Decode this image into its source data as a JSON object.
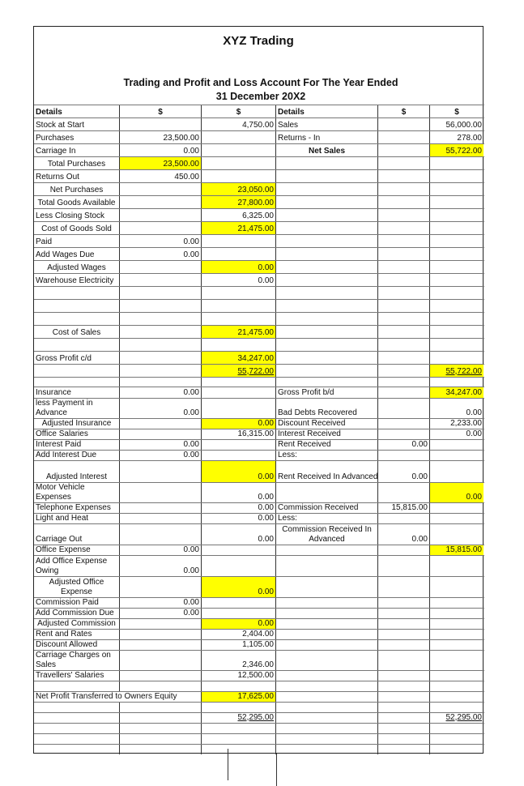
{
  "title": "XYZ Trading",
  "subtitle_line1": "Trading and Profit and Loss Account For The Year Ended",
  "subtitle_line2": "31 December 20X2",
  "highlight_color": "#ffff00",
  "rows": [
    {
      "c": [
        "Details",
        "$",
        "$",
        "Details",
        "$",
        "$"
      ],
      "bold": true
    },
    {
      "c": [
        "Stock at Start",
        "",
        "4,750.00",
        "Sales",
        "",
        "56,000.00"
      ]
    },
    {
      "c": [
        "Purchases",
        "23,500.00",
        "",
        "Returns - In",
        "",
        "278.00"
      ]
    },
    {
      "c": [
        "Carriage In",
        "0.00",
        "",
        "Net Sales",
        "",
        "55,722.00"
      ],
      "hl": [
        5
      ]
    },
    {
      "c": [
        "Total Purchases",
        "23,500.00",
        "",
        "",
        "",
        ""
      ],
      "hl": [
        1
      ]
    },
    {
      "c": [
        "Returns Out",
        "450.00",
        "",
        "",
        "",
        ""
      ]
    },
    {
      "c": [
        "Net Purchases",
        "",
        "23,050.00",
        "",
        "",
        ""
      ],
      "hl": [
        2
      ]
    },
    {
      "c": [
        "Total Goods Available",
        "",
        "27,800.00",
        "",
        "",
        ""
      ],
      "hl": [
        2
      ]
    },
    {
      "c": [
        "Less Closing Stock",
        "",
        "6,325.00",
        "",
        "",
        ""
      ]
    },
    {
      "c": [
        "Cost of Goods Sold",
        "",
        "21,475.00",
        "",
        "",
        ""
      ],
      "hl": [
        2
      ]
    },
    {
      "c": [
        "Paid",
        "0.00",
        "",
        "",
        "",
        ""
      ]
    },
    {
      "c": [
        "Add Wages Due",
        "0.00",
        "",
        "",
        "",
        ""
      ]
    },
    {
      "c": [
        "Adjusted Wages",
        "",
        "0.00",
        "",
        "",
        ""
      ],
      "hl": [
        2
      ]
    },
    {
      "c": [
        "Warehouse Electricity",
        "",
        "0.00",
        "",
        "",
        ""
      ]
    },
    {
      "c": [
        "",
        "",
        "",
        "",
        "",
        ""
      ]
    },
    {
      "c": [
        "",
        "",
        "",
        "",
        "",
        ""
      ]
    },
    {
      "c": [
        "",
        "",
        "",
        "",
        "",
        ""
      ]
    },
    {
      "c": [
        "Cost of Sales",
        "",
        "21,475.00",
        "",
        "",
        ""
      ],
      "hl": [
        2
      ]
    },
    {
      "c": [
        "",
        "",
        "",
        "",
        "",
        ""
      ]
    },
    {
      "c": [
        "Gross Profit c/d",
        "",
        "34,247.00",
        "",
        "",
        ""
      ],
      "hl": [
        2
      ]
    },
    {
      "c": [
        "",
        "",
        "55,722.00",
        "",
        "",
        "55,722.00"
      ],
      "hl": [
        2,
        5
      ],
      "ul": [
        2,
        5
      ]
    },
    {
      "c": [
        "",
        "",
        "",
        "",
        "",
        ""
      ]
    },
    {
      "c": [
        "Insurance",
        "0.00",
        "",
        "Gross Profit b/d",
        "",
        "34,247.00"
      ],
      "hl": [
        5
      ]
    },
    {
      "c": [
        "less Payment in Advance",
        "0.00",
        "",
        "Bad Debts Recovered",
        "",
        "0.00"
      ]
    },
    {
      "c": [
        "Adjusted Insurance",
        "",
        "0.00",
        "Discount Received",
        "",
        "2,233.00"
      ],
      "hl": [
        2
      ]
    },
    {
      "c": [
        "Office Salaries",
        "",
        "16,315.00",
        "Interest Received",
        "",
        "0.00"
      ]
    },
    {
      "c": [
        "Interest Paid",
        "0.00",
        "",
        "Rent Received",
        "0.00",
        ""
      ]
    },
    {
      "c": [
        "Add Interest Due",
        "0.00",
        "",
        "Less:",
        "",
        ""
      ]
    },
    {
      "c": [
        "Adjusted Interest",
        "",
        "0.00",
        "Rent Received In Advanced",
        "0.00",
        ""
      ],
      "hl": [
        2
      ]
    },
    {
      "c": [
        "Motor Vehicle Expenses",
        "",
        "0.00",
        "",
        "",
        "0.00"
      ],
      "hl": [
        5
      ]
    },
    {
      "c": [
        "Telephone Expenses",
        "",
        "0.00",
        "Commission Received",
        "15,815.00",
        ""
      ]
    },
    {
      "c": [
        "Light and Heat",
        "",
        "0.00",
        "Less:",
        "",
        ""
      ]
    },
    {
      "c": [
        "Carriage Out",
        "",
        "0.00",
        "Commission Received In Advanced",
        "0.00",
        ""
      ]
    },
    {
      "c": [
        "Office Expense",
        "0.00",
        "",
        "",
        "",
        "15,815.00"
      ],
      "hl": [
        5
      ]
    },
    {
      "c": [
        "Add Office Expense Owing",
        "0.00",
        "",
        "",
        "",
        ""
      ]
    },
    {
      "c": [
        "Adjusted Office Expense",
        "",
        "0.00",
        "",
        "",
        ""
      ],
      "hl": [
        2
      ]
    },
    {
      "c": [
        "Commission Paid",
        "0.00",
        "",
        "",
        "",
        ""
      ]
    },
    {
      "c": [
        "Add Commission Due",
        "0.00",
        "",
        "",
        "",
        ""
      ]
    },
    {
      "c": [
        "Adjusted Commission",
        "",
        "0.00",
        "",
        "",
        ""
      ],
      "hl": [
        2
      ]
    },
    {
      "c": [
        "Rent and Rates",
        "",
        "2,404.00",
        "",
        "",
        ""
      ]
    },
    {
      "c": [
        "Discount Allowed",
        "",
        "1,105.00",
        "",
        "",
        ""
      ]
    },
    {
      "c": [
        "Carriage Charges on Sales",
        "",
        "2,346.00",
        "",
        "",
        ""
      ]
    },
    {
      "c": [
        "Travellers' Salaries",
        "",
        "12,500.00",
        "",
        "",
        ""
      ]
    },
    {
      "c": [
        "",
        "",
        "",
        "",
        "",
        ""
      ]
    },
    {
      "c": [
        "Net Profit Transferred to Owners Equity",
        "",
        "17,625.00",
        "",
        "",
        ""
      ],
      "hl": [
        2
      ]
    },
    {
      "c": [
        "",
        "",
        "",
        "",
        "",
        ""
      ]
    },
    {
      "c": [
        "",
        "",
        "52,295.00",
        "",
        "",
        "52,295.00"
      ],
      "ul": [
        2,
        5
      ]
    },
    {
      "c": [
        "",
        "",
        "",
        "",
        "",
        ""
      ]
    },
    {
      "c": [
        "",
        "",
        "",
        "",
        "",
        ""
      ]
    },
    {
      "c": [
        "",
        "",
        "",
        "",
        "",
        ""
      ]
    }
  ]
}
